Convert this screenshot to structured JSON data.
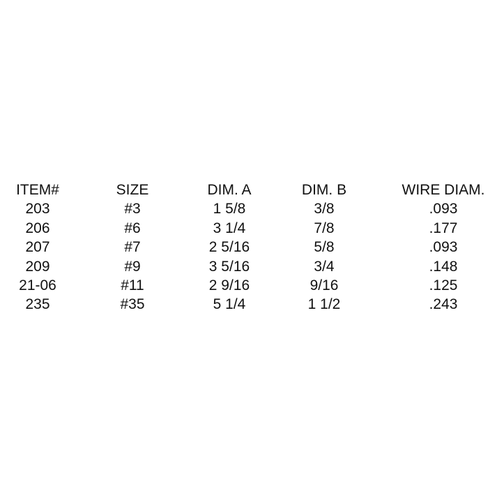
{
  "table": {
    "headers": [
      "ITEM#",
      "SIZE",
      "DIM. A",
      "DIM. B",
      "WIRE DIAM."
    ],
    "rows": [
      [
        "203",
        "#3",
        "1 5/8",
        "3/8",
        ".093"
      ],
      [
        "206",
        "#6",
        "3 1/4",
        "7/8",
        ".177"
      ],
      [
        "207",
        "#7",
        "2 5/16",
        "5/8",
        ".093"
      ],
      [
        "209",
        "#9",
        "3 5/16",
        "3/4",
        ".148"
      ],
      [
        "21-06",
        "#11",
        "2 9/16",
        "9/16",
        ".125"
      ],
      [
        "235",
        "#35",
        "5 1/4",
        "1 1/2",
        ".243"
      ]
    ]
  }
}
